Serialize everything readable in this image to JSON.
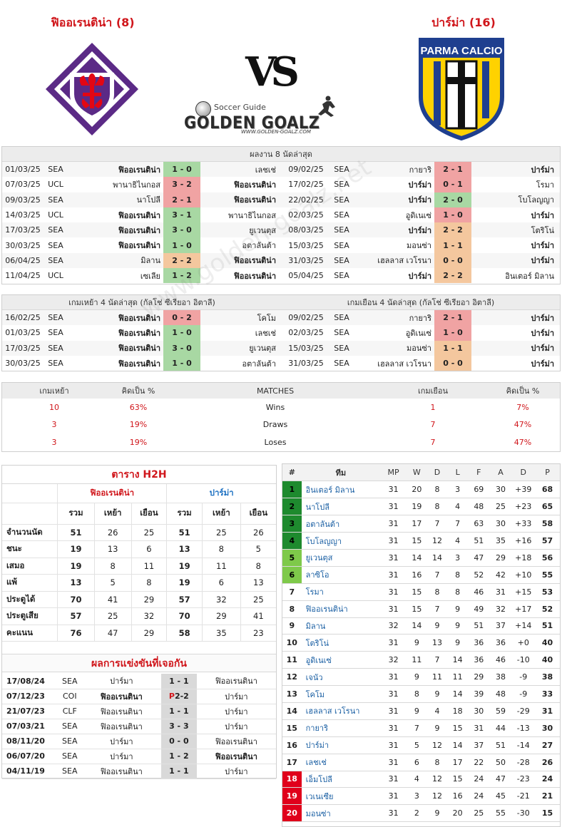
{
  "header": {
    "home_title": "ฟิออเรนติน่า (8)",
    "away_title": "ปาร์ม่า (16)",
    "vs": "VS",
    "guide_small": "Soccer Guide",
    "guide_logo": "GOLDEN GOALZ",
    "guide_url": "WWW.GOLDEN-GOALZ.COM",
    "parma_crest_text": "PARMA CALCIO",
    "watermark": "www.golden-goalz.net"
  },
  "last8": {
    "title": "ผลงาน 8 นัดล่าสุด",
    "home": [
      {
        "date": "01/03/25",
        "comp": "SEA",
        "home": "ฟิออเรนติน่า",
        "score": "1 - 0",
        "away": "เลชเช่",
        "res": "w",
        "hb": true,
        "ab": false
      },
      {
        "date": "07/03/25",
        "comp": "UCL",
        "home": "พานาธิไนกอส",
        "score": "3 - 2",
        "away": "ฟิออเรนติน่า",
        "res": "l",
        "hb": false,
        "ab": true
      },
      {
        "date": "09/03/25",
        "comp": "SEA",
        "home": "นาโปลี",
        "score": "2 - 1",
        "away": "ฟิออเรนติน่า",
        "res": "l",
        "hb": false,
        "ab": true
      },
      {
        "date": "14/03/25",
        "comp": "UCL",
        "home": "ฟิออเรนติน่า",
        "score": "3 - 1",
        "away": "พานาธิไนกอส",
        "res": "w",
        "hb": true,
        "ab": false
      },
      {
        "date": "17/03/25",
        "comp": "SEA",
        "home": "ฟิออเรนติน่า",
        "score": "3 - 0",
        "away": "ยูเวนตุส",
        "res": "w",
        "hb": true,
        "ab": false
      },
      {
        "date": "30/03/25",
        "comp": "SEA",
        "home": "ฟิออเรนติน่า",
        "score": "1 - 0",
        "away": "อตาลันต้า",
        "res": "w",
        "hb": true,
        "ab": false
      },
      {
        "date": "06/04/25",
        "comp": "SEA",
        "home": "มิลาน",
        "score": "2 - 2",
        "away": "ฟิออเรนติน่า",
        "res": "d",
        "hb": false,
        "ab": true
      },
      {
        "date": "11/04/25",
        "comp": "UCL",
        "home": "เซเลีย",
        "score": "1 - 2",
        "away": "ฟิออเรนติน่า",
        "res": "w",
        "hb": false,
        "ab": true
      }
    ],
    "away": [
      {
        "date": "09/02/25",
        "comp": "SEA",
        "home": "กายาริ",
        "score": "2 - 1",
        "away": "ปาร์ม่า",
        "res": "l",
        "hb": false,
        "ab": true
      },
      {
        "date": "17/02/25",
        "comp": "SEA",
        "home": "ปาร์ม่า",
        "score": "0 - 1",
        "away": "โรมา",
        "res": "l",
        "hb": true,
        "ab": false
      },
      {
        "date": "22/02/25",
        "comp": "SEA",
        "home": "ปาร์ม่า",
        "score": "2 - 0",
        "away": "โบโลญญา",
        "res": "w",
        "hb": true,
        "ab": false
      },
      {
        "date": "02/03/25",
        "comp": "SEA",
        "home": "อูดิเนเซ่",
        "score": "1 - 0",
        "away": "ปาร์ม่า",
        "res": "l",
        "hb": false,
        "ab": true
      },
      {
        "date": "08/03/25",
        "comp": "SEA",
        "home": "ปาร์ม่า",
        "score": "2 - 2",
        "away": "โตริโน่",
        "res": "d",
        "hb": true,
        "ab": false
      },
      {
        "date": "15/03/25",
        "comp": "SEA",
        "home": "มอนซ่า",
        "score": "1 - 1",
        "away": "ปาร์ม่า",
        "res": "d",
        "hb": false,
        "ab": true
      },
      {
        "date": "31/03/25",
        "comp": "SEA",
        "home": "เฮลลาส เวโรนา",
        "score": "0 - 0",
        "away": "ปาร์ม่า",
        "res": "d",
        "hb": false,
        "ab": true
      },
      {
        "date": "05/04/25",
        "comp": "SEA",
        "home": "ปาร์ม่า",
        "score": "2 - 2",
        "away": "อินเตอร์ มิลาน",
        "res": "d",
        "hb": true,
        "ab": false
      }
    ]
  },
  "last4": {
    "home_title": "เกมเหย้า 4 นัดล่าสุด (กัลโช่ ซีเรียอา อิตาลี)",
    "away_title": "เกมเยือน 4 นัดล่าสุด (กัลโช่ ซีเรียอา อิตาลี)",
    "home": [
      {
        "date": "16/02/25",
        "comp": "SEA",
        "home": "ฟิออเรนติน่า",
        "score": "0 - 2",
        "away": "โคโม",
        "res": "l",
        "hb": true,
        "ab": false
      },
      {
        "date": "01/03/25",
        "comp": "SEA",
        "home": "ฟิออเรนติน่า",
        "score": "1 - 0",
        "away": "เลชเช่",
        "res": "w",
        "hb": true,
        "ab": false
      },
      {
        "date": "17/03/25",
        "comp": "SEA",
        "home": "ฟิออเรนติน่า",
        "score": "3 - 0",
        "away": "ยูเวนตุส",
        "res": "w",
        "hb": true,
        "ab": false
      },
      {
        "date": "30/03/25",
        "comp": "SEA",
        "home": "ฟิออเรนติน่า",
        "score": "1 - 0",
        "away": "อตาลันต้า",
        "res": "w",
        "hb": true,
        "ab": false
      }
    ],
    "away": [
      {
        "date": "09/02/25",
        "comp": "SEA",
        "home": "กายาริ",
        "score": "2 - 1",
        "away": "ปาร์ม่า",
        "res": "l",
        "hb": false,
        "ab": true
      },
      {
        "date": "02/03/25",
        "comp": "SEA",
        "home": "อูดิเนเซ่",
        "score": "1 - 0",
        "away": "ปาร์ม่า",
        "res": "l",
        "hb": false,
        "ab": true
      },
      {
        "date": "15/03/25",
        "comp": "SEA",
        "home": "มอนซ่า",
        "score": "1 - 1",
        "away": "ปาร์ม่า",
        "res": "d",
        "hb": false,
        "ab": true
      },
      {
        "date": "31/03/25",
        "comp": "SEA",
        "home": "เฮลลาส เวโรนา",
        "score": "0 - 0",
        "away": "ปาร์ม่า",
        "res": "d",
        "hb": false,
        "ab": true
      }
    ]
  },
  "pct": {
    "headers": [
      "เกมเหย้า",
      "คิดเป็น  %",
      "MATCHES",
      "เกมเยือน",
      "คิดเป็น  %"
    ],
    "rows": [
      {
        "hv": "10",
        "hp": "63%",
        "label": "Wins",
        "av": "1",
        "ap": "7%"
      },
      {
        "hv": "3",
        "hp": "19%",
        "label": "Draws",
        "av": "7",
        "ap": "47%"
      },
      {
        "hv": "3",
        "hp": "19%",
        "label": "Loses",
        "av": "7",
        "ap": "47%"
      }
    ]
  },
  "h2h": {
    "title": "ตาราง H2H",
    "home_team": "ฟิออเรนติน่า",
    "away_team": "ปาร์ม่า",
    "cols": [
      "รวม",
      "เหย้า",
      "เยือน",
      "รวม",
      "เหย้า",
      "เยือน"
    ],
    "rows": [
      {
        "label": "จำนวนนัด",
        "v": [
          "51",
          "26",
          "25",
          "51",
          "25",
          "26"
        ]
      },
      {
        "label": "ชนะ",
        "v": [
          "19",
          "13",
          "6",
          "13",
          "8",
          "5"
        ]
      },
      {
        "label": "เสมอ",
        "v": [
          "19",
          "8",
          "11",
          "19",
          "11",
          "8"
        ]
      },
      {
        "label": "แพ้",
        "v": [
          "13",
          "5",
          "8",
          "19",
          "6",
          "13"
        ]
      },
      {
        "label": "ประตูได้",
        "v": [
          "70",
          "41",
          "29",
          "57",
          "32",
          "25"
        ]
      },
      {
        "label": "ประตูเสีย",
        "v": [
          "57",
          "25",
          "32",
          "70",
          "29",
          "41"
        ]
      },
      {
        "label": "คะแนน",
        "v": [
          "76",
          "47",
          "29",
          "58",
          "35",
          "23"
        ]
      }
    ]
  },
  "past": {
    "title": "ผลการแข่งขันที่เจอกัน",
    "rows": [
      {
        "date": "17/08/24",
        "comp": "SEA",
        "home": "ปาร์มา",
        "score": "1 - 1",
        "away": "ฟิออเรนตินา",
        "hb": false,
        "ab": false
      },
      {
        "date": "07/12/23",
        "comp": "COI",
        "home": "ฟิออเรนตินา",
        "score_prefix": "P",
        "score": "2-2",
        "away": "ปาร์มา",
        "hb": true,
        "ab": false
      },
      {
        "date": "21/07/23",
        "comp": "CLF",
        "home": "ฟิออเรนตินา",
        "score": "1 - 1",
        "away": "ปาร์มา",
        "hb": false,
        "ab": false
      },
      {
        "date": "07/03/21",
        "comp": "SEA",
        "home": "ฟิออเรนตินา",
        "score": "3 - 3",
        "away": "ปาร์มา",
        "hb": false,
        "ab": false
      },
      {
        "date": "08/11/20",
        "comp": "SEA",
        "home": "ปาร์มา",
        "score": "0 - 0",
        "away": "ฟิออเรนตินา",
        "hb": false,
        "ab": false
      },
      {
        "date": "06/07/20",
        "comp": "SEA",
        "home": "ปาร์มา",
        "score": "1 - 2",
        "away": "ฟิออเรนตินา",
        "hb": false,
        "ab": true
      },
      {
        "date": "04/11/19",
        "comp": "SEA",
        "home": "ฟิออเรนตินา",
        "score": "1 - 1",
        "away": "ปาร์มา",
        "hb": false,
        "ab": false
      }
    ]
  },
  "league": {
    "headers": [
      "#",
      "ทีม",
      "MP",
      "W",
      "D",
      "L",
      "F",
      "A",
      "D",
      "P"
    ],
    "rows": [
      {
        "rk": "1",
        "team": "อินเตอร์ มิลาน",
        "mp": "31",
        "w": "20",
        "d": "8",
        "l": "3",
        "f": "69",
        "a": "30",
        "gd": "+39",
        "p": "68",
        "zone": "#1e8a2e"
      },
      {
        "rk": "2",
        "team": "นาโปลี",
        "mp": "31",
        "w": "19",
        "d": "8",
        "l": "4",
        "f": "48",
        "a": "25",
        "gd": "+23",
        "p": "65",
        "zone": "#1e8a2e"
      },
      {
        "rk": "3",
        "team": "อตาลันต้า",
        "mp": "31",
        "w": "17",
        "d": "7",
        "l": "7",
        "f": "63",
        "a": "30",
        "gd": "+33",
        "p": "58",
        "zone": "#1e8a2e"
      },
      {
        "rk": "4",
        "team": "โบโลญญา",
        "mp": "31",
        "w": "15",
        "d": "12",
        "l": "4",
        "f": "51",
        "a": "35",
        "gd": "+16",
        "p": "57",
        "zone": "#1e8a2e"
      },
      {
        "rk": "5",
        "team": "ยูเวนตุส",
        "mp": "31",
        "w": "14",
        "d": "14",
        "l": "3",
        "f": "47",
        "a": "29",
        "gd": "+18",
        "p": "56",
        "zone": "#7ec94a"
      },
      {
        "rk": "6",
        "team": "ลาซิโอ",
        "mp": "31",
        "w": "16",
        "d": "7",
        "l": "8",
        "f": "52",
        "a": "42",
        "gd": "+10",
        "p": "55",
        "zone": "#7ec94a"
      },
      {
        "rk": "7",
        "team": "โรมา",
        "mp": "31",
        "w": "15",
        "d": "8",
        "l": "8",
        "f": "46",
        "a": "31",
        "gd": "+15",
        "p": "53",
        "zone": ""
      },
      {
        "rk": "8",
        "team": "ฟิออเรนติน่า",
        "mp": "31",
        "w": "15",
        "d": "7",
        "l": "9",
        "f": "49",
        "a": "32",
        "gd": "+17",
        "p": "52",
        "zone": ""
      },
      {
        "rk": "9",
        "team": "มิลาน",
        "mp": "32",
        "w": "14",
        "d": "9",
        "l": "9",
        "f": "51",
        "a": "37",
        "gd": "+14",
        "p": "51",
        "zone": ""
      },
      {
        "rk": "10",
        "team": "โตริโน่",
        "mp": "31",
        "w": "9",
        "d": "13",
        "l": "9",
        "f": "36",
        "a": "36",
        "gd": "+0",
        "p": "40",
        "zone": ""
      },
      {
        "rk": "11",
        "team": "อูดิเนเซ่",
        "mp": "32",
        "w": "11",
        "d": "7",
        "l": "14",
        "f": "36",
        "a": "46",
        "gd": "-10",
        "p": "40",
        "zone": ""
      },
      {
        "rk": "12",
        "team": "เจนัว",
        "mp": "31",
        "w": "9",
        "d": "11",
        "l": "11",
        "f": "29",
        "a": "38",
        "gd": "-9",
        "p": "38",
        "zone": ""
      },
      {
        "rk": "13",
        "team": "โคโม",
        "mp": "31",
        "w": "8",
        "d": "9",
        "l": "14",
        "f": "39",
        "a": "48",
        "gd": "-9",
        "p": "33",
        "zone": ""
      },
      {
        "rk": "14",
        "team": "เฮลลาส เวโรนา",
        "mp": "31",
        "w": "9",
        "d": "4",
        "l": "18",
        "f": "30",
        "a": "59",
        "gd": "-29",
        "p": "31",
        "zone": ""
      },
      {
        "rk": "15",
        "team": "กายาริ",
        "mp": "31",
        "w": "7",
        "d": "9",
        "l": "15",
        "f": "31",
        "a": "44",
        "gd": "-13",
        "p": "30",
        "zone": ""
      },
      {
        "rk": "16",
        "team": "ปาร์ม่า",
        "mp": "31",
        "w": "5",
        "d": "12",
        "l": "14",
        "f": "37",
        "a": "51",
        "gd": "-14",
        "p": "27",
        "zone": ""
      },
      {
        "rk": "17",
        "team": "เลชเช่",
        "mp": "31",
        "w": "6",
        "d": "8",
        "l": "17",
        "f": "22",
        "a": "50",
        "gd": "-28",
        "p": "26",
        "zone": ""
      },
      {
        "rk": "18",
        "team": "เอ็มโปลี",
        "mp": "31",
        "w": "4",
        "d": "12",
        "l": "15",
        "f": "24",
        "a": "47",
        "gd": "-23",
        "p": "24",
        "zone": "#e0001b"
      },
      {
        "rk": "19",
        "team": "เวเนเซีย",
        "mp": "31",
        "w": "3",
        "d": "12",
        "l": "16",
        "f": "24",
        "a": "45",
        "gd": "-21",
        "p": "21",
        "zone": "#e0001b"
      },
      {
        "rk": "20",
        "team": "มอนซ่า",
        "mp": "31",
        "w": "2",
        "d": "9",
        "l": "20",
        "f": "25",
        "a": "55",
        "gd": "-30",
        "p": "15",
        "zone": "#e0001b"
      }
    ]
  }
}
